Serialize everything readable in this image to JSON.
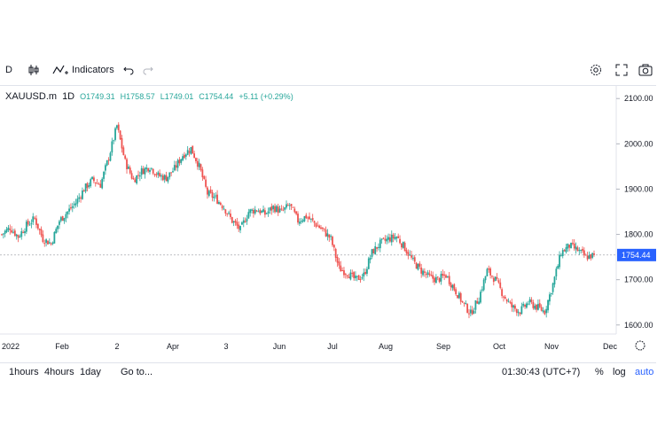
{
  "toolbar": {
    "interval": "D",
    "indicators_label": "Indicators"
  },
  "legend": {
    "symbol": "XAUUSD.m",
    "timeframe": "1D",
    "open": "O1749.31",
    "high": "H1758.57",
    "low": "L1749.01",
    "close": "C1754.44",
    "change": "+5.11 (+0.29%)"
  },
  "bottom_bar": {
    "ranges": [
      "1hours",
      "4hours",
      "1day"
    ],
    "goto_label": "Go to...",
    "clock": "01:30:43 (UTC+7)",
    "percent_label": "%",
    "log_label": "log",
    "auto_label": "auto"
  },
  "colors": {
    "up": "#26a69a",
    "down": "#ef5350",
    "price_tag": "#2962ff",
    "accent": "#2962ff"
  },
  "chart_data": {
    "type": "candlestick",
    "symbol": "XAUUSD.m",
    "ylim": [
      1580,
      2120
    ],
    "y_ticks": [
      1600,
      1700,
      1800,
      1900,
      2000,
      2100
    ],
    "y_tick_labels": [
      "1600.00",
      "1700.00",
      "1800.00",
      "1900.00",
      "2000.00",
      "2100.00"
    ],
    "x_tick_labels": [
      "2022",
      "Feb",
      "2",
      "Apr",
      "3",
      "Jun",
      "Jul",
      "Aug",
      "Sep",
      "Oct",
      "Nov",
      "Dec"
    ],
    "last_price": 1754.44,
    "last_price_label": "1754.44",
    "weekly_closes": [
      1800,
      1815,
      1795,
      1820,
      1835,
      1790,
      1780,
      1830,
      1850,
      1870,
      1900,
      1920,
      1910,
      1970,
      2040,
      1960,
      1920,
      1940,
      1950,
      1930,
      1925,
      1945,
      1975,
      1990,
      1950,
      1890,
      1880,
      1860,
      1830,
      1810,
      1850,
      1855,
      1845,
      1860,
      1850,
      1865,
      1830,
      1840,
      1825,
      1810,
      1790,
      1725,
      1715,
      1700,
      1710,
      1760,
      1780,
      1790,
      1795,
      1770,
      1740,
      1720,
      1705,
      1700,
      1710,
      1680,
      1650,
      1625,
      1660,
      1720,
      1700,
      1665,
      1640,
      1630,
      1650,
      1640,
      1630,
      1690,
      1760,
      1775,
      1765,
      1750,
      1754
    ]
  }
}
